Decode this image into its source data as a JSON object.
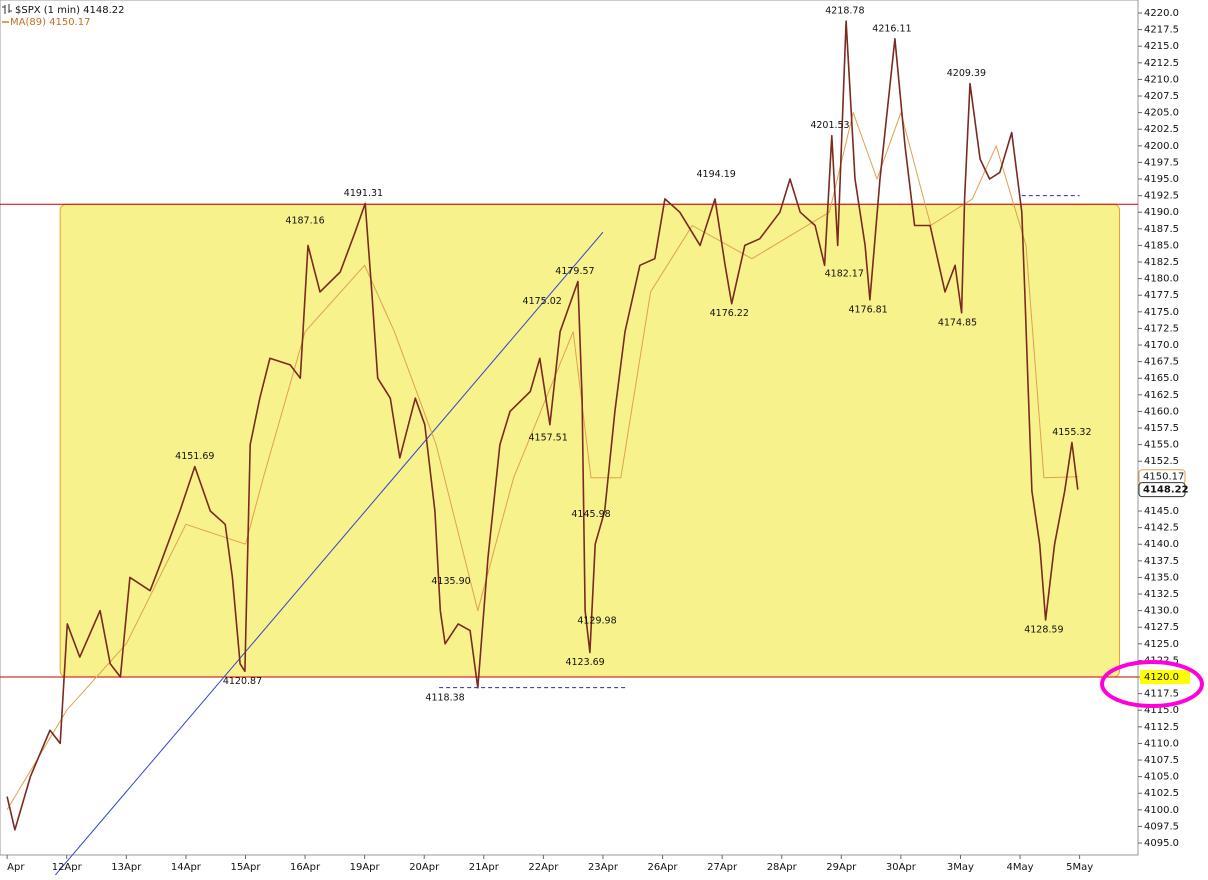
{
  "chart_data": {
    "type": "line",
    "series": [
      {
        "name": "$SPX (1 min) 4148.22",
        "color": "#7a2a20",
        "x": [
          0,
          0.13,
          0.39,
          0.72,
          0.89,
          1.01,
          1.22,
          1.56,
          1.73,
          1.9,
          2.06,
          2.4,
          2.57,
          2.9,
          3.15,
          3.41,
          3.66,
          3.78,
          3.91,
          3.99,
          4.08,
          4.24,
          4.41,
          4.75,
          4.92,
          5.05,
          5.25,
          5.59,
          5.84,
          6.01,
          6.12,
          6.22,
          6.43,
          6.59,
          6.85,
          7.01,
          7.18,
          7.27,
          7.35,
          7.57,
          7.77,
          7.9,
          8.07,
          8.27,
          8.44,
          8.78,
          8.94,
          9.11,
          9.28,
          9.58,
          9.65,
          9.7,
          9.78,
          9.87,
          10.03,
          10.2,
          10.37,
          10.62,
          10.87,
          11.04,
          11.29,
          11.63,
          11.88,
          12.05,
          12.16,
          12.38,
          12.63,
          12.97,
          13.14,
          13.31,
          13.56,
          13.72,
          13.84,
          13.94,
          14.08,
          14.23,
          14.4,
          14.48,
          14.65,
          14.9,
          15.07,
          15.23,
          15.49,
          15.74,
          15.91,
          16.02,
          16.07,
          16.16,
          16.33,
          16.49,
          16.66,
          16.86,
          17.03,
          17.08,
          17.13,
          17.2,
          17.33,
          17.43,
          17.58,
          17.75,
          17.87,
          17.97
        ],
        "values": [
          4102,
          4097,
          4105,
          4112,
          4110,
          4128,
          4123,
          4130,
          4122,
          4120,
          4135,
          4133,
          4137,
          4145,
          4151.69,
          4145,
          4143,
          4135,
          4122,
          4120.87,
          4155,
          4162,
          4168,
          4167,
          4165,
          4185,
          4178,
          4181,
          4187,
          4191.31,
          4178,
          4165,
          4162,
          4153,
          4162,
          4158,
          4145,
          4130,
          4125,
          4128,
          4127,
          4118.38,
          4138,
          4155,
          4160,
          4163,
          4168,
          4158,
          4172,
          4179.57,
          4162,
          4130,
          4123.69,
          4140,
          4145,
          4160,
          4172,
          4182,
          4183,
          4192,
          4190,
          4185,
          4192,
          4182,
          4176.22,
          4185,
          4186,
          4190,
          4195,
          4190,
          4188,
          4182,
          4201.53,
          4185,
          4218.78,
          4195,
          4185,
          4176.81,
          4195,
          4216.11,
          4200,
          4188,
          4188,
          4178,
          4182,
          4174.85,
          4192,
          4209.39,
          4198,
          4195,
          4196,
          4202,
          4190,
          4178,
          4165,
          4148,
          4140,
          4128.59,
          4140,
          4148,
          4155.32,
          4148.22
        ]
      },
      {
        "name": "MA(89) 4150.17",
        "color": "#e0a050",
        "x": [
          0,
          1.0,
          2.0,
          3.0,
          4.0,
          4.3,
          5.0,
          6.0,
          6.5,
          7.2,
          7.9,
          8.5,
          9.5,
          9.8,
          10.3,
          10.8,
          11.5,
          12.5,
          13.8,
          14.2,
          14.6,
          15.0,
          15.5,
          16.2,
          16.6,
          17.1,
          17.4,
          17.98
        ],
        "values": [
          4100,
          4115,
          4125,
          4143,
          4140,
          4150,
          4172,
          4182,
          4172,
          4155,
          4130,
          4150,
          4172,
          4150,
          4150,
          4178,
          4188,
          4183,
          4190,
          4205,
          4195,
          4205,
          4188,
          4192,
          4200,
          4185,
          4150,
          4150.17
        ]
      }
    ],
    "peaks": {
      "x": [
        3.15,
        5.0,
        5.98,
        8.98,
        9.53,
        11.9,
        13.81,
        14.06,
        14.85,
        16.1,
        17.87
      ],
      "values": [
        4151.69,
        4187.16,
        4191.31,
        4175.02,
        4179.57,
        4194.19,
        4201.53,
        4218.78,
        4216.11,
        4209.39,
        4155.32
      ]
    },
    "troughs": {
      "x": [
        3.95,
        7.35,
        7.45,
        9.08,
        9.8,
        9.9,
        9.7,
        12.12,
        14.05,
        14.45,
        15.95,
        17.4
      ],
      "values": [
        4120.87,
        4118.38,
        4135.9,
        4157.51,
        4145.98,
        4129.98,
        4123.69,
        4176.22,
        4182.17,
        4176.81,
        4174.85,
        4128.59
      ],
      "value_labels": [
        "4120.87",
        "4118.38",
        "4135.90",
        "4157.51",
        "4145.98",
        "4129.98",
        "4123.69",
        "4176.22",
        "4182.17",
        "4176.81",
        "4174.85",
        "4128.59"
      ]
    },
    "zone": {
      "x": [
        0.89,
        18.67
      ],
      "y": [
        4120,
        4191.2
      ],
      "color": "#f7f28c"
    },
    "hlines": {
      "values": [
        4191.2,
        4120
      ],
      "color": "#cc0000"
    },
    "trendline": {
      "x": [
        0.81,
        10.0
      ],
      "values": [
        4090.2,
        4187.0
      ],
      "color": "#3344cc"
    },
    "dashed": [
      {
        "x": [
          7.25,
          10.42
        ],
        "value": 4118.4
      },
      {
        "x": [
          17.03,
          18.0
        ],
        "value": 4192.5
      }
    ],
    "xlim": [
      -0.12,
      18.98
    ],
    "ylim": [
      4093.2,
      4221.96
    ],
    "xticks": [
      {
        "value": 0,
        "label": "Apr"
      },
      {
        "value": 1,
        "label": "12Apr"
      },
      {
        "value": 2,
        "label": "13Apr"
      },
      {
        "value": 3,
        "label": "14Apr"
      },
      {
        "value": 4,
        "label": "15Apr"
      },
      {
        "value": 5,
        "label": "16Apr"
      },
      {
        "value": 6,
        "label": "19Apr"
      },
      {
        "value": 7,
        "label": "20Apr"
      },
      {
        "value": 8,
        "label": "21Apr"
      },
      {
        "value": 9,
        "label": "22Apr"
      },
      {
        "value": 10,
        "label": "23Apr"
      },
      {
        "value": 11,
        "label": "26Apr"
      },
      {
        "value": 12,
        "label": "27Apr"
      },
      {
        "value": 13,
        "label": "28Apr"
      },
      {
        "value": 14,
        "label": "29Apr"
      },
      {
        "value": 15,
        "label": "30Apr"
      },
      {
        "value": 16,
        "label": "3May"
      },
      {
        "value": 17,
        "label": "4May"
      },
      {
        "value": 18,
        "label": "5May"
      }
    ],
    "yticks": [
      {
        "value": 4220,
        "label": "4220.0"
      },
      {
        "value": 4217.5,
        "label": "4217.5"
      },
      {
        "value": 4215,
        "label": "4215.0"
      },
      {
        "value": 4212.5,
        "label": "4212.5"
      },
      {
        "value": 4210,
        "label": "4210.0"
      },
      {
        "value": 4207.5,
        "label": "4207.5"
      },
      {
        "value": 4205,
        "label": "4205.0"
      },
      {
        "value": 4202.5,
        "label": "4202.5"
      },
      {
        "value": 4200,
        "label": "4200.0"
      },
      {
        "value": 4197.5,
        "label": "4197.5"
      },
      {
        "value": 4195,
        "label": "4195.0"
      },
      {
        "value": 4192.5,
        "label": "4192.5"
      },
      {
        "value": 4190,
        "label": "4190.0"
      },
      {
        "value": 4187.5,
        "label": "4187.5"
      },
      {
        "value": 4185,
        "label": "4185.0"
      },
      {
        "value": 4182.5,
        "label": "4182.5"
      },
      {
        "value": 4180,
        "label": "4180.0"
      },
      {
        "value": 4177.5,
        "label": "4177.5"
      },
      {
        "value": 4175,
        "label": "4175.0"
      },
      {
        "value": 4172.5,
        "label": "4172.5"
      },
      {
        "value": 4170,
        "label": "4170.0"
      },
      {
        "value": 4167.5,
        "label": "4167.5"
      },
      {
        "value": 4165,
        "label": "4165.0"
      },
      {
        "value": 4162.5,
        "label": "4162.5"
      },
      {
        "value": 4160,
        "label": "4160.0"
      },
      {
        "value": 4157.5,
        "label": "4157.5"
      },
      {
        "value": 4155,
        "label": "4155.0"
      },
      {
        "value": 4152.5,
        "label": "4152.5"
      },
      {
        "value": 4145,
        "label": "4145.0"
      },
      {
        "value": 4142.5,
        "label": "4142.5"
      },
      {
        "value": 4140,
        "label": "4140.0"
      },
      {
        "value": 4137.5,
        "label": "4137.5"
      },
      {
        "value": 4135,
        "label": "4135.0"
      },
      {
        "value": 4132.5,
        "label": "4132.5"
      },
      {
        "value": 4130,
        "label": "4130.0"
      },
      {
        "value": 4127.5,
        "label": "4127.5"
      },
      {
        "value": 4125,
        "label": "4125.0"
      },
      {
        "value": 4122.5,
        "label": "4122.5"
      },
      {
        "value": 4120,
        "label": "4120.0",
        "highlight": "#ffff00"
      },
      {
        "value": 4117.5,
        "label": "4117.5"
      },
      {
        "value": 4115,
        "label": "4115.0"
      },
      {
        "value": 4112.5,
        "label": "4112.5"
      },
      {
        "value": 4110,
        "label": "4110.0"
      },
      {
        "value": 4107.5,
        "label": "4107.5"
      },
      {
        "value": 4105,
        "label": "4105.0"
      },
      {
        "value": 4102.5,
        "label": "4102.5"
      },
      {
        "value": 4100,
        "label": "4100.0"
      },
      {
        "value": 4097.5,
        "label": "4097.5"
      },
      {
        "value": 4095,
        "label": "4095.0"
      }
    ]
  }
}
